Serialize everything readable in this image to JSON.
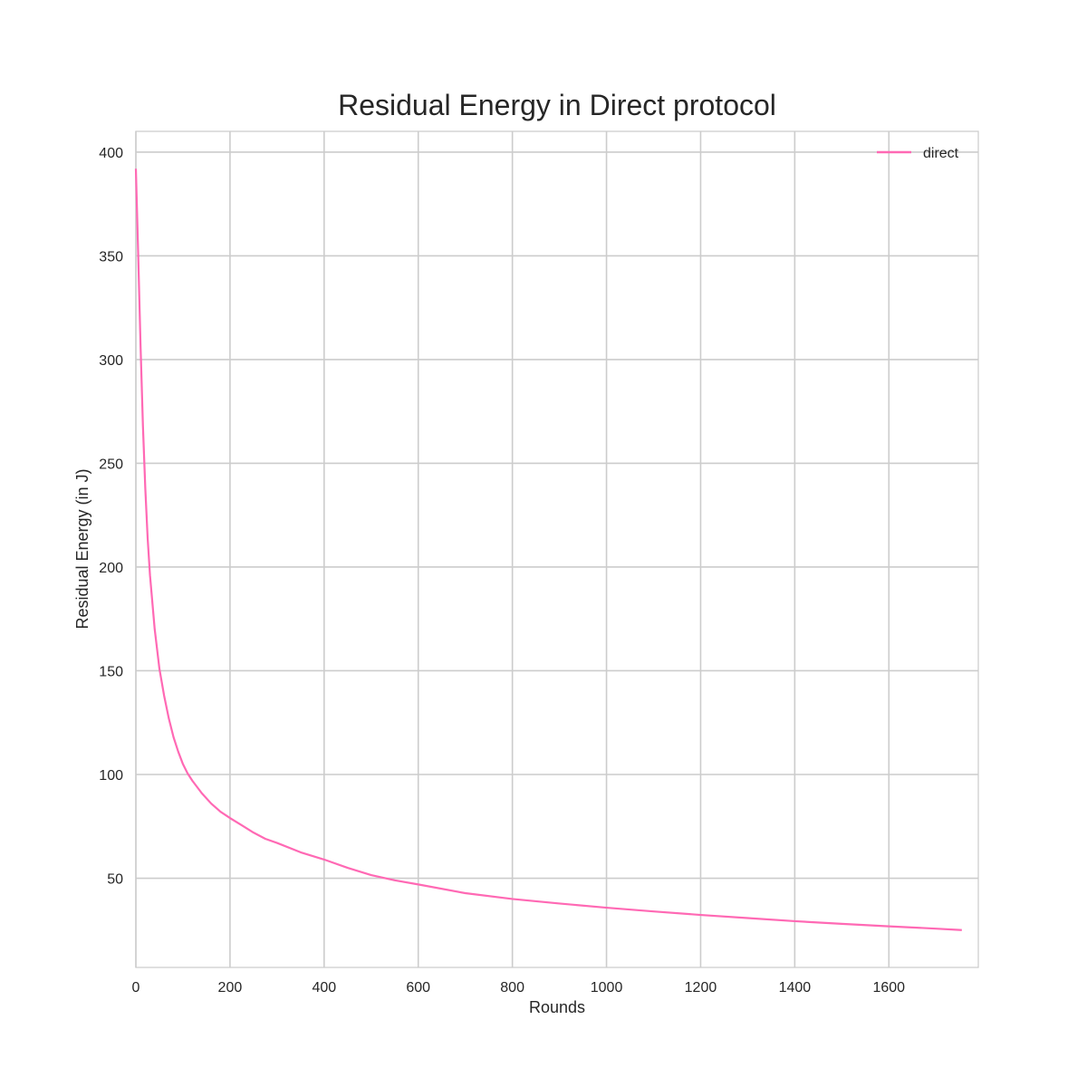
{
  "chart_data": {
    "type": "line",
    "title": "Residual Energy in Direct protocol",
    "xlabel": "Rounds",
    "ylabel": "Residual Energy (in J)",
    "xlim": [
      0,
      1790
    ],
    "ylim": [
      7,
      410
    ],
    "xticks": [
      0,
      200,
      400,
      600,
      800,
      1000,
      1200,
      1400,
      1600
    ],
    "yticks": [
      50,
      100,
      150,
      200,
      250,
      300,
      350,
      400
    ],
    "grid": true,
    "legend_position": "top-right",
    "series": [
      {
        "name": "direct",
        "color": "#ff69b4",
        "x": [
          0,
          5,
          10,
          15,
          20,
          25,
          30,
          40,
          50,
          60,
          70,
          80,
          90,
          100,
          110,
          120,
          140,
          160,
          180,
          200,
          225,
          250,
          275,
          300,
          350,
          400,
          450,
          500,
          550,
          600,
          700,
          800,
          900,
          1000,
          1100,
          1200,
          1300,
          1400,
          1500,
          1600,
          1700,
          1755
        ],
        "y": [
          392,
          350,
          306,
          268,
          238,
          214,
          196,
          170,
          151,
          138,
          127,
          118,
          111,
          105,
          100.5,
          97,
          91,
          86,
          82,
          79,
          75.5,
          72,
          69,
          67,
          62.5,
          59,
          55,
          51.5,
          49,
          47,
          42.8,
          40,
          37.8,
          35.8,
          34,
          32.3,
          30.8,
          29.3,
          28,
          26.8,
          25.7,
          25
        ]
      }
    ]
  }
}
